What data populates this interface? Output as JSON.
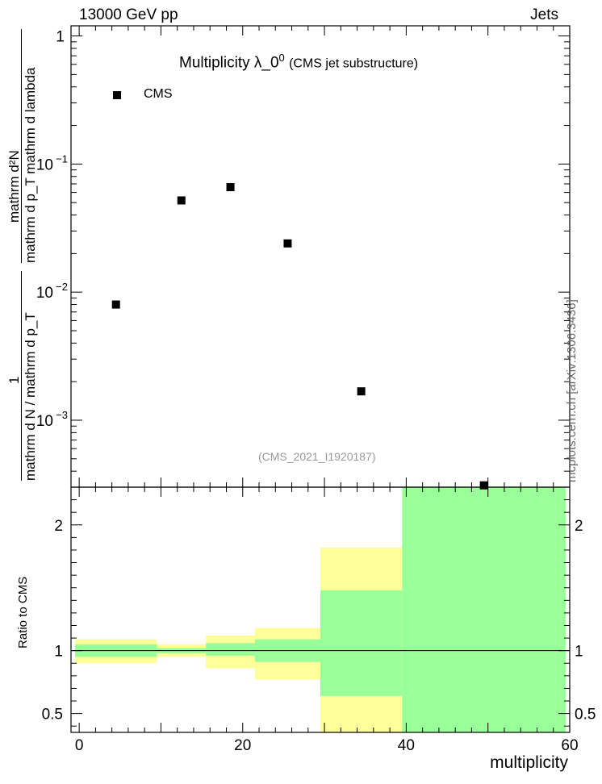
{
  "header": {
    "energy": "13000 GeV pp",
    "category": "Jets"
  },
  "side_label": "mcplots.cern.ch [arXiv:1306.3436]",
  "chart_data": [
    {
      "type": "scatter",
      "title": "Multiplicity  λ_0",
      "title_superscript": "0",
      "subtitle": "(CMS jet substructure)",
      "analysis_tag": "(CMS_2021_I1920187)",
      "ylabel_numerator": "1",
      "ylabel_denominator": "mathrm d N / mathrm d p_T",
      "ylabel_fraction_numerator": "mathrm d²N",
      "ylabel_fraction_denominator": "mathrm d p_T mathrm d lambda",
      "yscale": "log",
      "xlim": [
        -1,
        60
      ],
      "ylim": [
        0.0003,
        1.2
      ],
      "y_ticks": [
        {
          "value": 1,
          "label": "1"
        },
        {
          "value": 0.1,
          "label": "10",
          "exp": "−1"
        },
        {
          "value": 0.01,
          "label": "10",
          "exp": "−2"
        },
        {
          "value": 0.001,
          "label": "10",
          "exp": "−3"
        }
      ],
      "legend": {
        "position": "top-left",
        "entries": [
          "CMS"
        ]
      },
      "series": [
        {
          "name": "CMS",
          "marker": "square",
          "color": "#000000",
          "x": [
            4.5,
            12.5,
            18.5,
            25.5,
            34.5,
            49.5
          ],
          "y": [
            0.008,
            0.052,
            0.066,
            0.024,
            0.00168,
            0.00031
          ]
        }
      ]
    },
    {
      "type": "bar",
      "ylabel": "Ratio to CMS",
      "xlabel": "multiplicity",
      "xlim": [
        -1,
        60
      ],
      "ylim": [
        0.35,
        2.3
      ],
      "x_ticks": [
        0,
        20,
        40,
        60
      ],
      "y_ticks": [
        {
          "value": 0.5,
          "label": "0.5"
        },
        {
          "value": 1,
          "label": "1"
        },
        {
          "value": 2,
          "label": "2"
        }
      ],
      "reference_line": 1,
      "band_colors": {
        "stat": "#99ff99",
        "total": "#ffff99"
      },
      "bins": [
        {
          "lo": -0.5,
          "hi": 9.5,
          "stat_lo": 0.95,
          "stat_hi": 1.05,
          "tot_lo": 0.9,
          "tot_hi": 1.09
        },
        {
          "lo": 9.5,
          "hi": 15.5,
          "stat_lo": 0.98,
          "stat_hi": 1.02,
          "tot_lo": 0.95,
          "tot_hi": 1.05
        },
        {
          "lo": 15.5,
          "hi": 21.5,
          "stat_lo": 0.96,
          "stat_hi": 1.06,
          "tot_lo": 0.86,
          "tot_hi": 1.12
        },
        {
          "lo": 21.5,
          "hi": 29.5,
          "stat_lo": 0.91,
          "stat_hi": 1.09,
          "tot_lo": 0.77,
          "tot_hi": 1.18
        },
        {
          "lo": 29.5,
          "hi": 39.5,
          "stat_lo": 0.64,
          "stat_hi": 1.48,
          "tot_lo": 0.35,
          "tot_hi": 1.82
        },
        {
          "lo": 39.5,
          "hi": 59.5,
          "stat_lo": 0.35,
          "stat_hi": 2.3,
          "tot_lo": 0.35,
          "tot_hi": 2.3
        }
      ]
    }
  ]
}
